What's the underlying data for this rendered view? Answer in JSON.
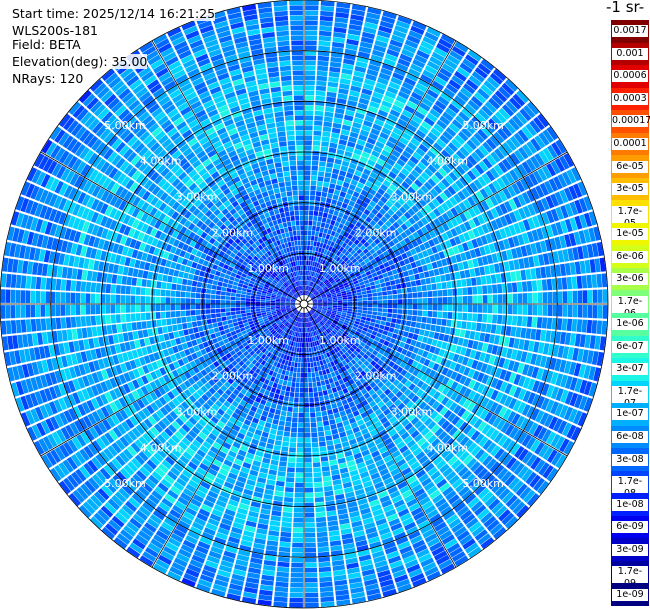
{
  "header": {
    "start_time": "Start time: 2025/12/14 16:21:25",
    "instrument": "WLS200s-181",
    "field": "Field: BETA",
    "elevation": "Elevation(deg): 35.00",
    "nrays": "NRays: 120"
  },
  "colorbar": {
    "title": "-1 sr-",
    "labels": [
      "0.0017",
      "0.001",
      "0.0006",
      "0.0003",
      "0.00017",
      "0.0001",
      "6e-05",
      "3e-05",
      "1.7e-05",
      "1e-05",
      "6e-06",
      "3e-06",
      "1.7e-06",
      "1e-06",
      "6e-07",
      "3e-07",
      "1.7e-07",
      "1e-07",
      "6e-08",
      "3e-08",
      "1.7e-08",
      "1e-08",
      "6e-09",
      "3e-09",
      "1.7e-09",
      "1e-09"
    ],
    "colors": [
      "#800000",
      "#b40000",
      "#e00000",
      "#ff2000",
      "#ff5000",
      "#ff7a00",
      "#ff9c00",
      "#ffbd00",
      "#fde000",
      "#f0f500",
      "#d3ff18",
      "#a8ff48",
      "#80ff78",
      "#58ffa0",
      "#30ffcd",
      "#1af5e6",
      "#00d4ff",
      "#00b0ff",
      "#008cff",
      "#0068ff",
      "#0044ff",
      "#0020ff",
      "#0000f0",
      "#0000c8",
      "#0000a0",
      "#000080"
    ]
  },
  "chart_data": {
    "type": "heatmap",
    "projection": "polar",
    "field": "BETA",
    "elevation_deg": 35.0,
    "n_rays": 120,
    "range_rings_km": [
      "1.00km",
      "2.00km",
      "3.00km",
      "4.00km",
      "5.00km"
    ],
    "max_range_km": 6.0,
    "radial_profile": {
      "range_km": [
        0.2,
        1.0,
        1.5,
        2.0,
        2.5,
        3.0,
        3.5,
        4.0,
        4.5,
        5.0,
        5.5,
        6.0
      ],
      "beta": [
        1e-08,
        1.7e-08,
        3e-08,
        3e-08,
        6e-08,
        1e-07,
        1e-07,
        1e-07,
        1e-07,
        6e-08,
        6e-08,
        3e-08
      ]
    }
  }
}
